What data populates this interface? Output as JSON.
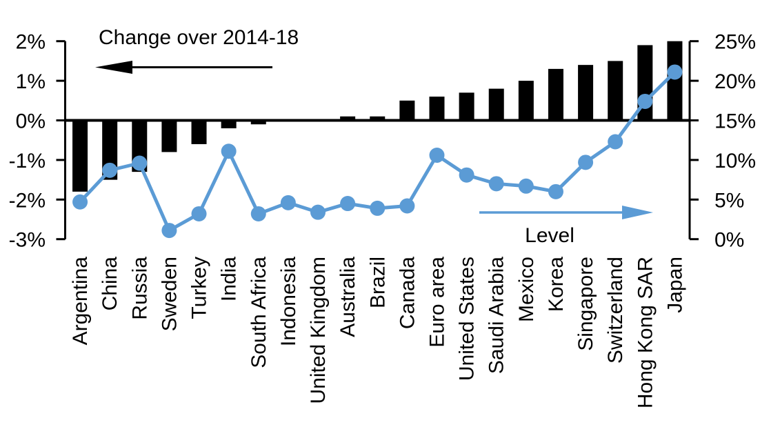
{
  "chart_data": {
    "type": "combo_bar_line",
    "title": "Change over 2014-18",
    "categories": [
      "Argentina",
      "China",
      "Russia",
      "Sweden",
      "Turkey",
      "India",
      "South Africa",
      "Indonesia",
      "United Kingdom",
      "Australia",
      "Brazil",
      "Canada",
      "Euro area",
      "United States",
      "Saudi Arabia",
      "Mexico",
      "Korea",
      "Singapore",
      "Switzerland",
      "Hong Kong SAR",
      "Japan"
    ],
    "series": [
      {
        "name": "Change over 2014-18",
        "type": "bar",
        "axis": "left",
        "color": "#000000",
        "unit": "percentage points",
        "values": [
          -1.8,
          -1.5,
          -1.3,
          -0.8,
          -0.6,
          -0.2,
          -0.1,
          0,
          0,
          0.1,
          0.1,
          0.5,
          0.6,
          0.7,
          0.8,
          1.0,
          1.3,
          1.4,
          1.5,
          1.9,
          2.0
        ]
      },
      {
        "name": "Level",
        "type": "line",
        "axis": "right",
        "color": "#5B9BD5",
        "unit": "%",
        "values": [
          4.7,
          8.7,
          9.6,
          1.1,
          3.2,
          11.1,
          3.2,
          4.6,
          3.4,
          4.5,
          3.9,
          4.2,
          10.6,
          8.1,
          7.0,
          6.7,
          6.0,
          9.7,
          12.3,
          17.4,
          21.1
        ]
      }
    ],
    "left_axis": {
      "tick_labels": [
        "2%",
        "1%",
        "0%",
        "-1%",
        "-2%",
        "-3%"
      ],
      "tick_values": [
        2,
        1,
        0,
        -1,
        -2,
        -3
      ],
      "min": -3,
      "max": 2
    },
    "right_axis": {
      "tick_labels": [
        "25%",
        "20%",
        "15%",
        "10%",
        "5%",
        "0%"
      ],
      "tick_values": [
        25,
        20,
        15,
        10,
        5,
        0
      ],
      "min": 0,
      "max": 25
    },
    "annotations": {
      "change": {
        "text": "Change over 2014-18",
        "arrow_direction": "left",
        "arrow_color": "#000000"
      },
      "level": {
        "text": "Level",
        "arrow_direction": "right",
        "arrow_color": "#5B9BD5"
      }
    },
    "grid": false,
    "background": "#FFFFFF",
    "colors": {
      "bar": "#000000",
      "line": "#5B9BD5",
      "text": "#000000"
    }
  }
}
